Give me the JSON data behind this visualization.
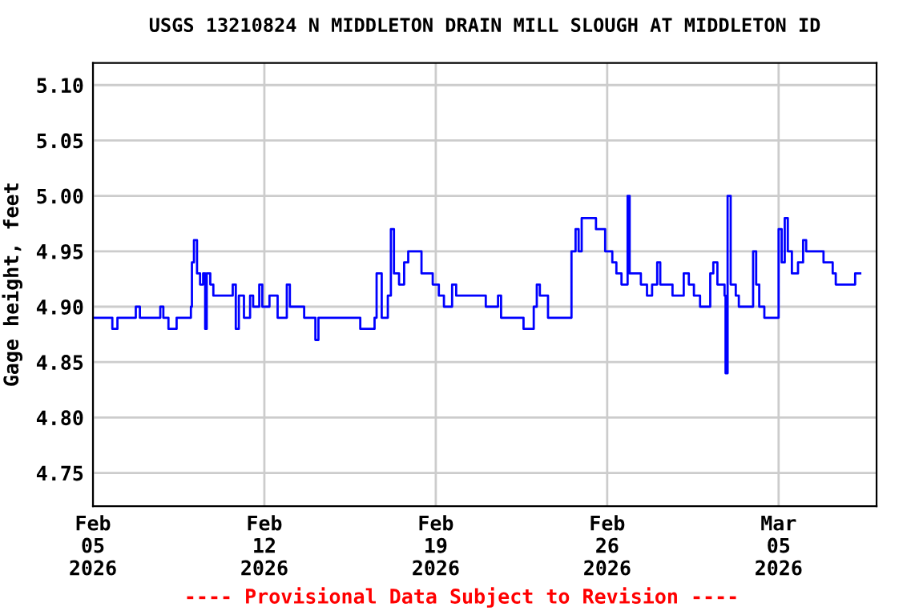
{
  "chart_data": {
    "type": "step",
    "title": "USGS 13210824 N MIDDLETON DRAIN MILL SLOUGH AT MIDDLETON ID",
    "ylabel": "Gage height, feet",
    "annotations": [
      "---- Provisional Data Subject to Revision ----"
    ],
    "x": [
      "2026-02-05T00:00",
      "2026-02-05T19:00",
      "2026-02-06T00:00",
      "2026-02-06T18:00",
      "2026-02-06T22:00",
      "2026-02-07T18:00",
      "2026-02-07T21:00",
      "2026-02-08T02:00",
      "2026-02-08T10:00",
      "2026-02-09T00:00",
      "2026-02-09T01:00",
      "2026-02-09T03:00",
      "2026-02-09T06:00",
      "2026-02-09T09:00",
      "2026-02-09T12:00",
      "2026-02-09T14:00",
      "2026-02-09T15:30",
      "2026-02-09T19:00",
      "2026-02-09T22:00",
      "2026-02-10T17:00",
      "2026-02-10T20:00",
      "2026-02-10T23:00",
      "2026-02-11T04:00",
      "2026-02-11T10:00",
      "2026-02-11T13:00",
      "2026-02-11T19:00",
      "2026-02-11T22:00",
      "2026-02-12T05:00",
      "2026-02-12T13:00",
      "2026-02-12T22:00",
      "2026-02-13T01:00",
      "2026-02-13T15:00",
      "2026-02-14T02:00",
      "2026-02-14T05:00",
      "2026-02-15T06:00",
      "2026-02-15T22:00",
      "2026-02-16T12:00",
      "2026-02-16T14:00",
      "2026-02-16T19:00",
      "2026-02-17T01:00",
      "2026-02-17T04:00",
      "2026-02-17T07:00",
      "2026-02-17T12:00",
      "2026-02-17T17:00",
      "2026-02-17T21:00",
      "2026-02-18T07:00",
      "2026-02-18T10:00",
      "2026-02-18T21:00",
      "2026-02-19T03:00",
      "2026-02-19T08:00",
      "2026-02-19T16:00",
      "2026-02-19T20:00",
      "2026-02-20T20:00",
      "2026-02-21T01:00",
      "2026-02-21T13:00",
      "2026-02-21T16:00",
      "2026-02-22T11:00",
      "2026-02-22T14:00",
      "2026-02-23T00:00",
      "2026-02-23T03:00",
      "2026-02-23T06:00",
      "2026-02-23T14:00",
      "2026-02-24T12:00",
      "2026-02-24T13:00",
      "2026-02-24T17:00",
      "2026-02-24T20:00",
      "2026-02-24T23:00",
      "2026-02-25T10:00",
      "2026-02-25T13:00",
      "2026-02-25T21:00",
      "2026-02-25T22:00",
      "2026-02-26T05:00",
      "2026-02-26T09:00",
      "2026-02-26T14:00",
      "2026-02-26T19:00",
      "2026-02-26T20:00",
      "2026-02-26T22:00",
      "2026-02-27T09:00",
      "2026-02-27T15:00",
      "2026-02-27T20:00",
      "2026-02-28T01:00",
      "2026-02-28T04:00",
      "2026-02-28T16:00",
      "2026-02-28T23:00",
      "2026-03-01T03:00",
      "2026-03-01T08:00",
      "2026-03-01T13:00",
      "2026-03-01T19:00",
      "2026-03-02T05:00",
      "2026-03-02T08:00",
      "2026-03-02T12:00",
      "2026-03-02T19:00",
      "2026-03-02T20:00",
      "2026-03-02T22:00",
      "2026-03-03T01:00",
      "2026-03-03T06:00",
      "2026-03-03T09:00",
      "2026-03-03T21:00",
      "2026-03-03T23:00",
      "2026-03-04T02:00",
      "2026-03-04T05:00",
      "2026-03-04T10:00",
      "2026-03-04T22:00",
      "2026-03-05T00:00",
      "2026-03-05T03:00",
      "2026-03-05T06:00",
      "2026-03-05T09:00",
      "2026-03-05T13:00",
      "2026-03-05T19:00",
      "2026-03-06T00:00",
      "2026-03-06T03:00",
      "2026-03-06T18:00",
      "2026-03-06T20:00",
      "2026-03-07T05:00",
      "2026-03-07T08:00",
      "2026-03-07T21:00",
      "2026-03-08T03:00",
      "2026-03-08T08:00"
    ],
    "series": [
      {
        "color": "#0000ff",
        "values": [
          4.89,
          4.88,
          4.89,
          4.9,
          4.89,
          4.9,
          4.89,
          4.88,
          4.89,
          4.9,
          4.94,
          4.96,
          4.93,
          4.92,
          4.93,
          4.88,
          4.93,
          4.92,
          4.91,
          4.92,
          4.88,
          4.91,
          4.89,
          4.91,
          4.9,
          4.92,
          4.9,
          4.91,
          4.89,
          4.92,
          4.9,
          4.89,
          4.87,
          4.89,
          4.89,
          4.88,
          4.89,
          4.93,
          4.89,
          4.91,
          4.97,
          4.93,
          4.92,
          4.94,
          4.95,
          4.95,
          4.93,
          4.92,
          4.91,
          4.9,
          4.92,
          4.91,
          4.91,
          4.9,
          4.91,
          4.89,
          4.89,
          4.88,
          4.9,
          4.92,
          4.91,
          4.89,
          4.89,
          4.95,
          4.97,
          4.95,
          4.98,
          4.98,
          4.97,
          4.97,
          4.95,
          4.94,
          4.93,
          4.92,
          4.92,
          5.0,
          4.93,
          4.92,
          4.91,
          4.92,
          4.94,
          4.92,
          4.91,
          4.91,
          4.93,
          4.92,
          4.91,
          4.9,
          4.93,
          4.94,
          4.92,
          4.91,
          4.84,
          5.0,
          4.92,
          4.91,
          4.9,
          4.9,
          4.95,
          4.92,
          4.9,
          4.89,
          4.89,
          4.97,
          4.94,
          4.98,
          4.95,
          4.93,
          4.94,
          4.96,
          4.95,
          4.95,
          4.94,
          4.93,
          4.92,
          4.92,
          4.93,
          4.93
        ]
      }
    ],
    "xlim": [
      "2026-02-05T00:00",
      "2026-03-09T00:00"
    ],
    "xticks": [
      {
        "value": "2026-02-05",
        "label": "Feb\n05\n2026"
      },
      {
        "value": "2026-02-12",
        "label": "Feb\n12\n2026"
      },
      {
        "value": "2026-02-19",
        "label": "Feb\n19\n2026"
      },
      {
        "value": "2026-02-26",
        "label": "Feb\n26\n2026"
      },
      {
        "value": "2026-03-05",
        "label": "Mar\n05\n2026"
      }
    ],
    "ylim": [
      4.72,
      5.12
    ],
    "yticks": [
      {
        "value": 4.75,
        "label": "4.75"
      },
      {
        "value": 4.8,
        "label": "4.80"
      },
      {
        "value": 4.85,
        "label": "4.85"
      },
      {
        "value": 4.9,
        "label": "4.90"
      },
      {
        "value": 4.95,
        "label": "4.95"
      },
      {
        "value": 5.0,
        "label": "5.00"
      },
      {
        "value": 5.05,
        "label": "5.05"
      },
      {
        "value": 5.1,
        "label": "5.10"
      }
    ],
    "grid": true
  }
}
